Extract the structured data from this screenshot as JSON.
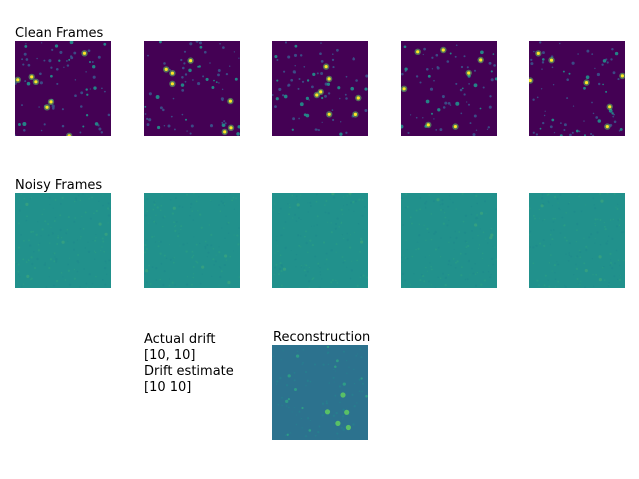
{
  "clean_title": "Clean Frames",
  "noisy_title": "Noisy Frames",
  "recon_title": "Reconstruction",
  "drift_lines": [
    "Actual drift",
    "[10, 10]",
    "Drift estimate",
    "[10 10]"
  ],
  "colors": {
    "clean_bg": "#440154",
    "noisy_bg": "#21918c",
    "recon_bg": "#2c728e",
    "spot_bright": "#fde725",
    "spot_mid": "#5ec962",
    "spot_dim": "#3b528b"
  },
  "panels": {
    "clean": [
      "clean-frame-1",
      "clean-frame-2",
      "clean-frame-3",
      "clean-frame-4",
      "clean-frame-5"
    ],
    "noisy": [
      "noisy-frame-1",
      "noisy-frame-2",
      "noisy-frame-3",
      "noisy-frame-4",
      "noisy-frame-5"
    ],
    "recon": [
      "reconstruction-image"
    ]
  }
}
